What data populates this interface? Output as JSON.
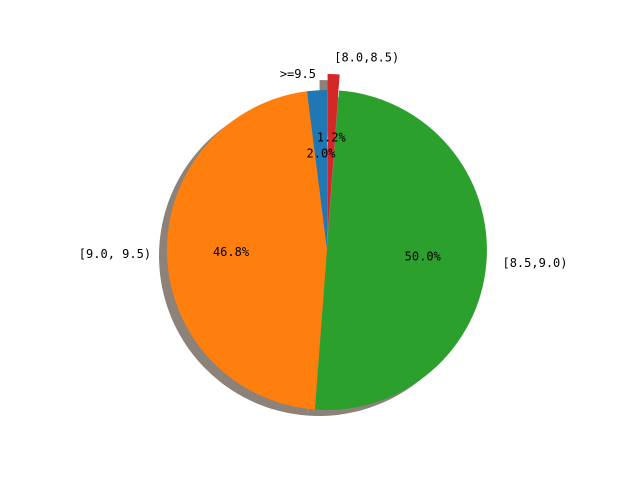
{
  "chart_data": {
    "type": "pie",
    "title": "",
    "categories": [
      ">=9.5",
      "[9.0, 9.5)",
      "[8.5,9.0)",
      "[8.0,8.5)"
    ],
    "values": [
      2.0,
      46.8,
      50.0,
      1.2
    ],
    "value_labels": [
      "2.0%",
      "46.8%",
      "50.0%",
      "1.2%"
    ],
    "colors": [
      "#1f77b4",
      "#ff7f0e",
      "#2ca02c",
      "#d62728"
    ],
    "exploded": [
      false,
      false,
      false,
      true
    ],
    "shadow": true,
    "start_angle_deg": 90,
    "direction": "counterclockwise",
    "legend": "none"
  }
}
